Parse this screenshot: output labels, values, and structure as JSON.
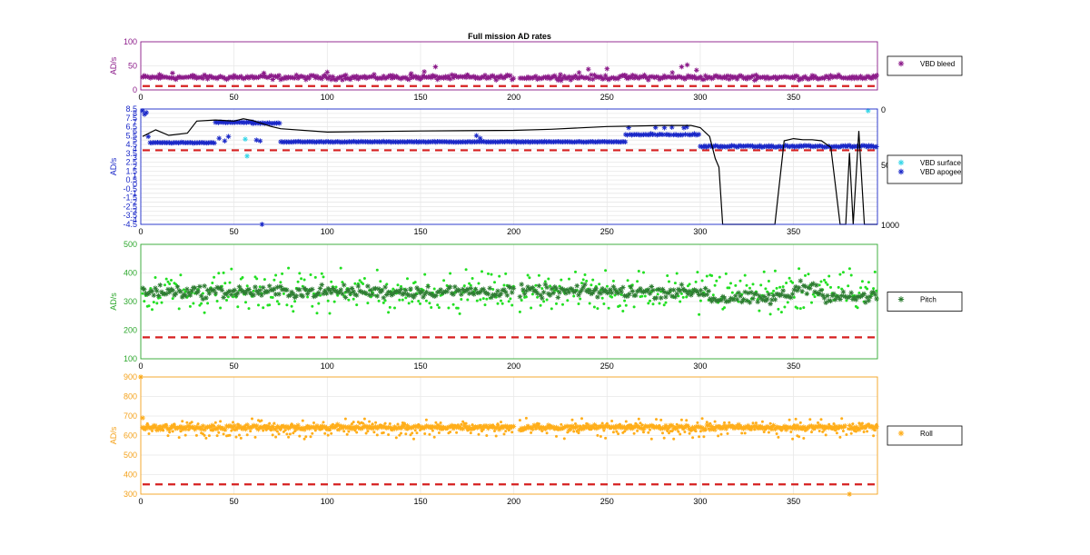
{
  "figure": {
    "title": "Full mission AD rates"
  },
  "colors": {
    "bleed": "#8b1a89",
    "bleed_axis": "#8b1a89",
    "surface": "#35d6e8",
    "apogee": "#1a28c8",
    "depth": "#000000",
    "apogee_axis": "#1a28c8",
    "pitch_light": "#22e022",
    "pitch_dark": "#2e7d32",
    "pitch_axis": "#2ea82e",
    "roll": "#ffae1a",
    "roll_axis": "#f4a21c",
    "threshold": "#d62020",
    "grid": "#e8e8e8"
  },
  "chart_data": [
    {
      "type": "scatter",
      "ylabel": "AD/s",
      "xlim": [
        0,
        395
      ],
      "ylim": [
        0,
        100
      ],
      "yticks": [
        "0",
        "50",
        "100"
      ],
      "xticks": [
        "0",
        "50",
        "100",
        "150",
        "200",
        "250",
        "300",
        "350"
      ],
      "legend": [
        "VBD bleed"
      ],
      "legend_location": "outside-right",
      "threshold": 8,
      "series": [
        {
          "name": "VBD bleed",
          "marker": "*",
          "baseline": 26,
          "jitter": 4,
          "gaps": [
            [
              200,
              203
            ]
          ],
          "outliers": [
            [
              10,
              32
            ],
            [
              17,
              35
            ],
            [
              28,
              30
            ],
            [
              50,
              30
            ],
            [
              66,
              35
            ],
            [
              100,
              37
            ],
            [
              110,
              31
            ],
            [
              135,
              30
            ],
            [
              145,
              34
            ],
            [
              152,
              38
            ],
            [
              158,
              48
            ],
            [
              175,
              31
            ],
            [
              225,
              32
            ],
            [
              235,
              36
            ],
            [
              240,
              43
            ],
            [
              250,
              44
            ],
            [
              260,
              30
            ],
            [
              270,
              31
            ],
            [
              285,
              36
            ],
            [
              290,
              48
            ],
            [
              293,
              52
            ],
            [
              298,
              41
            ],
            [
              330,
              31
            ],
            [
              360,
              30
            ]
          ]
        }
      ]
    },
    {
      "type": "scatter",
      "ylabel": "AD/s",
      "xlim": [
        0,
        395
      ],
      "ylim": [
        -4.5,
        8.5
      ],
      "yticks": [
        "8.5",
        "8",
        "7.5",
        "7",
        "6.5",
        "6",
        "5.5",
        "5",
        "4.5",
        "4",
        "3.5",
        "3",
        "2.5",
        "2",
        "1.5",
        "1",
        "0.5",
        "0",
        "-0.5",
        "-1",
        "-1.5",
        "-2",
        "-2.5",
        "-3",
        "-3.5",
        "-4",
        "-4.5"
      ],
      "y2ticks": [
        "0",
        "50",
        "1000"
      ],
      "xticks": [
        "0",
        "50",
        "100",
        "150",
        "200",
        "250",
        "300",
        "350"
      ],
      "legend": [
        "VBD surface",
        "VBD apogee"
      ],
      "legend_location": "outside-right",
      "threshold": 3.85,
      "series": [
        {
          "name": "VBD surface",
          "marker": "*",
          "points": [
            [
              56,
              5.1
            ],
            [
              57,
              3.2
            ],
            [
              390,
              8.3
            ]
          ]
        },
        {
          "name": "VBD apogee",
          "marker": "*",
          "segments": [
            [
              [
                5,
                40,
                4.7
              ],
              [
                40,
                60,
                7.0
              ],
              [
                60,
                75,
                6.9
              ],
              [
                75,
                260,
                4.8
              ],
              [
                260,
                300,
                5.6
              ],
              [
                300,
                395,
                4.4
              ]
            ]
          ],
          "points": [
            [
              1,
              8.3
            ],
            [
              2,
              7.9
            ],
            [
              3,
              8.1
            ],
            [
              4,
              5.4
            ],
            [
              42,
              5.2
            ],
            [
              45,
              4.9
            ],
            [
              47,
              5.4
            ],
            [
              62,
              5.0
            ],
            [
              64,
              4.9
            ],
            [
              65,
              -4.5
            ],
            [
              180,
              5.5
            ],
            [
              182,
              5.2
            ]
          ]
        }
      ],
      "depth_trace": {
        "ylim": [
          0,
          1000
        ],
        "x": [
          1,
          8,
          15,
          25,
          30,
          40,
          50,
          55,
          60,
          70,
          75,
          100,
          150,
          200,
          220,
          250,
          280,
          295,
          300,
          305,
          308,
          310,
          312,
          315,
          320,
          330,
          340,
          345,
          350,
          355,
          360,
          365,
          370,
          375,
          378,
          380,
          382,
          385,
          388,
          390,
          395
        ],
        "y": [
          200,
          140,
          190,
          170,
          60,
          50,
          60,
          40,
          55,
          110,
          130,
          160,
          150,
          145,
          135,
          110,
          100,
          100,
          120,
          200,
          400,
          480,
          1000,
          1000,
          1000,
          1000,
          1000,
          240,
          220,
          230,
          230,
          240,
          300,
          1000,
          1000,
          350,
          1000,
          150,
          1000,
          1000,
          1000
        ]
      }
    },
    {
      "type": "scatter",
      "ylabel": "AD/s",
      "xlim": [
        0,
        395
      ],
      "ylim": [
        100,
        500
      ],
      "yticks": [
        "100",
        "200",
        "300",
        "400",
        "500"
      ],
      "xticks": [
        "0",
        "50",
        "100",
        "150",
        "200",
        "250",
        "300",
        "350"
      ],
      "legend": [
        "Pitch"
      ],
      "legend_location": "outside-right",
      "threshold": 175,
      "series": [
        {
          "name": "Pitch (spread)",
          "marker": ".",
          "baseline": 335,
          "jitter": 55,
          "gaps": [
            [
              200,
              203
            ]
          ]
        },
        {
          "name": "Pitch",
          "marker": "*",
          "baseline": 335,
          "jitter": 18,
          "gaps": [
            [
              200,
              203
            ]
          ],
          "dips": [
            [
              305,
              340,
              310
            ],
            [
              340,
              350,
              320
            ],
            [
              350,
              365,
              350
            ],
            [
              365,
              395,
              315
            ]
          ]
        }
      ]
    },
    {
      "type": "scatter",
      "ylabel": "AD/s",
      "xlim": [
        0,
        395
      ],
      "ylim": [
        300,
        900
      ],
      "yticks": [
        "300",
        "400",
        "500",
        "600",
        "700",
        "800",
        "900"
      ],
      "xticks": [
        "0",
        "50",
        "100",
        "150",
        "200",
        "250",
        "300",
        "350"
      ],
      "legend": [
        "Roll"
      ],
      "legend_location": "outside-right",
      "threshold": 350,
      "series": [
        {
          "name": "Roll (spread)",
          "marker": ".",
          "baseline": 635,
          "jitter": 35,
          "gaps": [
            [
              200,
              203
            ]
          ]
        },
        {
          "name": "Roll",
          "marker": "*",
          "baseline": 642,
          "jitter": 10,
          "gaps": [
            [
              200,
              203
            ],
            [
              378,
              380
            ]
          ],
          "points": [
            [
              0,
              900
            ],
            [
              1,
              690
            ],
            [
              380,
              300
            ]
          ]
        }
      ]
    }
  ]
}
